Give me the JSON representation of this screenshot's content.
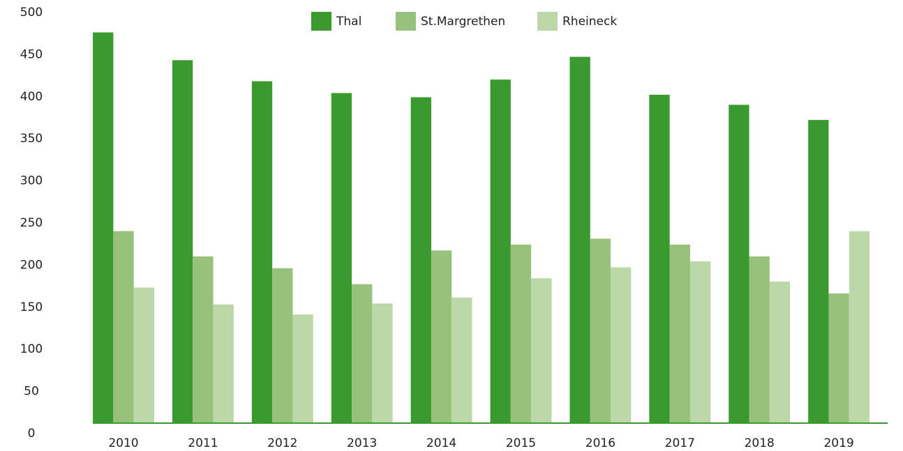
{
  "chart_data": {
    "type": "bar",
    "categories": [
      "2010",
      "2011",
      "2012",
      "2013",
      "2014",
      "2015",
      "2016",
      "2017",
      "2018",
      "2019"
    ],
    "series": [
      {
        "name": "Thal",
        "color": "#3a9a2e",
        "values": [
          464,
          431,
          406,
          392,
          387,
          408,
          435,
          390,
          378,
          360
        ]
      },
      {
        "name": "St.Margrethen",
        "color": "#98c17c",
        "values": [
          228,
          198,
          184,
          165,
          205,
          212,
          219,
          212,
          198,
          154
        ]
      },
      {
        "name": "Rheineck",
        "color": "#bcd8a8",
        "values": [
          161,
          141,
          129,
          142,
          149,
          172,
          185,
          192,
          168,
          228
        ]
      }
    ],
    "ylim": [
      0,
      500
    ],
    "yticks": [
      0,
      50,
      100,
      150,
      200,
      250,
      300,
      350,
      400,
      450,
      500
    ],
    "grid": false,
    "legend": "top"
  }
}
